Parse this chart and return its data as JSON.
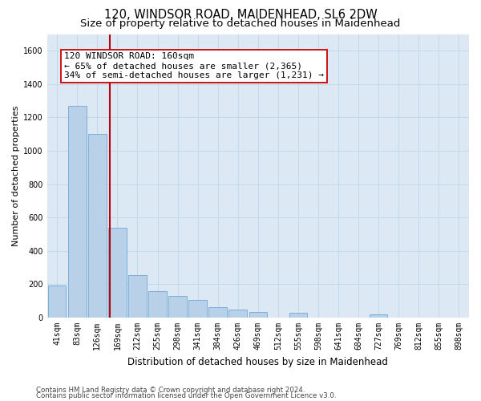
{
  "title1": "120, WINDSOR ROAD, MAIDENHEAD, SL6 2DW",
  "title2": "Size of property relative to detached houses in Maidenhead",
  "xlabel": "Distribution of detached houses by size in Maidenhead",
  "ylabel": "Number of detached properties",
  "footer1": "Contains HM Land Registry data © Crown copyright and database right 2024.",
  "footer2": "Contains public sector information licensed under the Open Government Licence v3.0.",
  "annotation_line1": "120 WINDSOR ROAD: 160sqm",
  "annotation_line2": "← 65% of detached houses are smaller (2,365)",
  "annotation_line3": "34% of semi-detached houses are larger (1,231) →",
  "bar_color": "#b8d0e8",
  "bar_edge_color": "#6fa8d4",
  "vline_color": "#bb0000",
  "vline_x": 2.63,
  "categories": [
    "41sqm",
    "83sqm",
    "126sqm",
    "169sqm",
    "212sqm",
    "255sqm",
    "298sqm",
    "341sqm",
    "384sqm",
    "426sqm",
    "469sqm",
    "512sqm",
    "555sqm",
    "598sqm",
    "641sqm",
    "684sqm",
    "727sqm",
    "769sqm",
    "812sqm",
    "855sqm",
    "898sqm"
  ],
  "values": [
    192,
    1270,
    1100,
    540,
    255,
    160,
    130,
    105,
    65,
    50,
    35,
    0,
    30,
    0,
    0,
    0,
    18,
    0,
    0,
    0,
    0
  ],
  "ylim": [
    0,
    1700
  ],
  "yticks": [
    0,
    200,
    400,
    600,
    800,
    1000,
    1200,
    1400,
    1600
  ],
  "plot_bg_color": "#dce9f5",
  "grid_color": "#c8d8ec",
  "title_fontsize": 10.5,
  "subtitle_fontsize": 9.5,
  "annotation_fontsize": 8,
  "ylabel_fontsize": 8,
  "xlabel_fontsize": 8.5,
  "tick_fontsize": 7
}
